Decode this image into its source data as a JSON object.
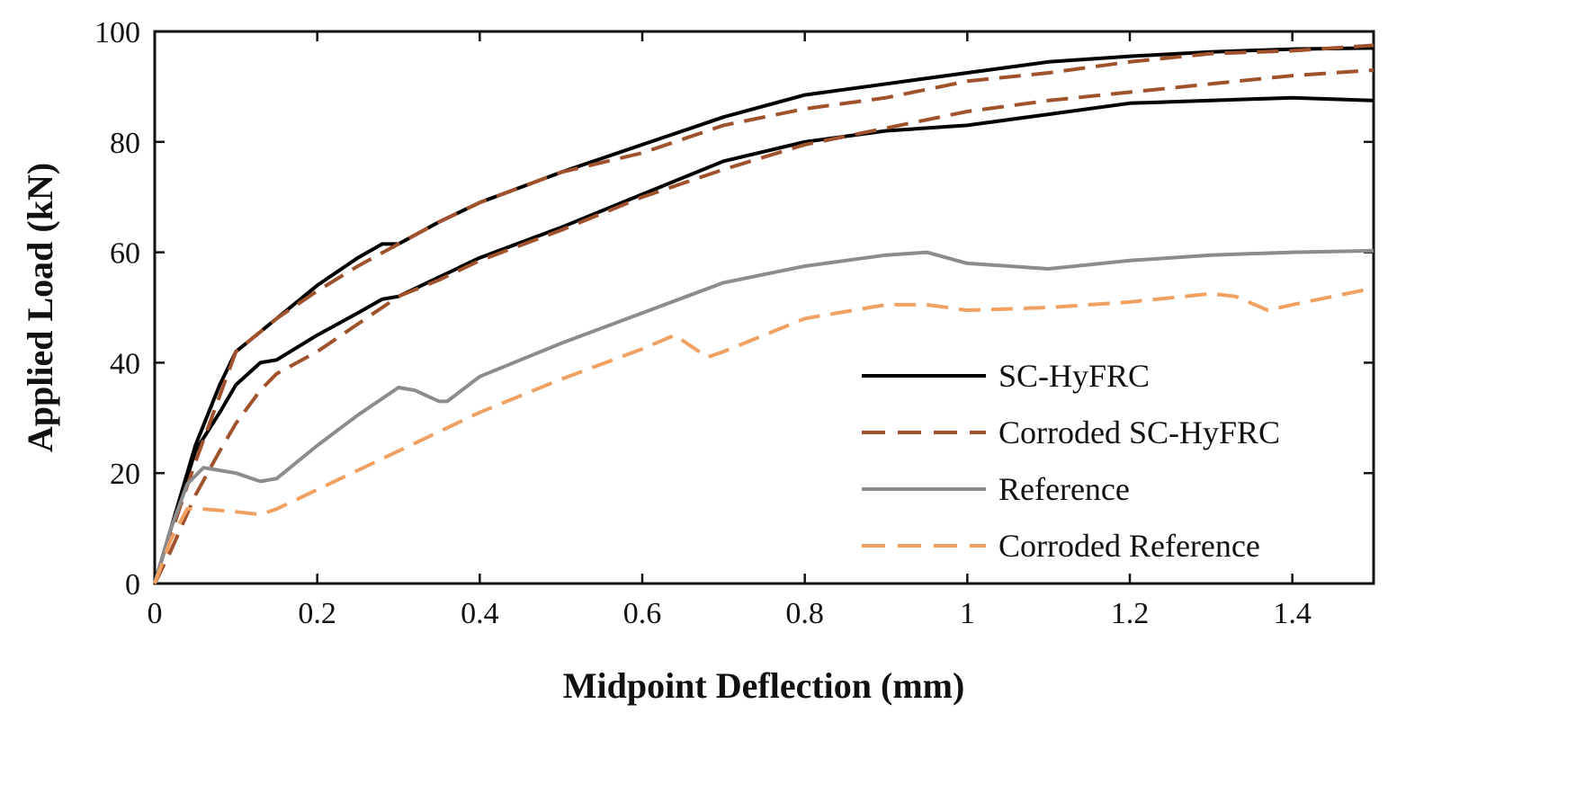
{
  "chart_data": {
    "type": "line",
    "title": "",
    "xlabel": "Midpoint Deflection (mm)",
    "ylabel": "Applied Load (kN)",
    "xlim": [
      0,
      1.5
    ],
    "ylim": [
      0,
      100
    ],
    "xticks": [
      0,
      0.2,
      0.4,
      0.6,
      0.8,
      1,
      1.2,
      1.4
    ],
    "xtick_labels": [
      "0",
      "0.2",
      "0.4",
      "0.6",
      "0.8",
      "1",
      "1.2",
      "1.4"
    ],
    "yticks": [
      0,
      20,
      40,
      60,
      80,
      100
    ],
    "ytick_labels": [
      "0",
      "20",
      "40",
      "60",
      "80",
      "100"
    ],
    "grid": false,
    "legend_position": "bottom-right",
    "legend": [
      {
        "label": "SC-HyFRC",
        "color": "#000000",
        "style": "solid"
      },
      {
        "label": "Corroded SC-HyFRC",
        "color": "#a0522d",
        "style": "dashed"
      },
      {
        "label": "Reference",
        "color": "#8c8c8c",
        "style": "solid"
      },
      {
        "label": "Corroded Reference",
        "color": "#f0a060",
        "style": "dashed"
      }
    ],
    "series": [
      {
        "name": "SC-HyFRC",
        "color": "#000000",
        "style": "solid",
        "x": [
          0,
          0.02,
          0.05,
          0.08,
          0.1,
          0.15,
          0.2,
          0.25,
          0.28,
          0.3,
          0.35,
          0.4,
          0.5,
          0.6,
          0.7,
          0.8,
          0.9,
          1.0,
          1.1,
          1.2,
          1.3,
          1.4,
          1.5
        ],
        "y": [
          0,
          10,
          25,
          36,
          42,
          48,
          54,
          59,
          61.5,
          61.5,
          65.5,
          69,
          74.5,
          79.5,
          84.5,
          88.5,
          90.5,
          92.5,
          94.5,
          95.5,
          96.3,
          96.8,
          97
        ]
      },
      {
        "name": "SC-HyFRC",
        "color": "#000000",
        "style": "solid",
        "x": [
          0,
          0.02,
          0.05,
          0.08,
          0.1,
          0.13,
          0.15,
          0.2,
          0.25,
          0.28,
          0.3,
          0.35,
          0.4,
          0.5,
          0.6,
          0.7,
          0.8,
          0.9,
          1.0,
          1.1,
          1.2,
          1.3,
          1.4,
          1.5
        ],
        "y": [
          0,
          10,
          24,
          31,
          36,
          40,
          40.5,
          45,
          49,
          51.5,
          52,
          55.5,
          59,
          64.5,
          70.5,
          76.5,
          80,
          82,
          83,
          85,
          87,
          87.5,
          88,
          87.5
        ]
      },
      {
        "name": "Corroded SC-HyFRC",
        "color": "#a0522d",
        "style": "dashed",
        "x": [
          0,
          0.02,
          0.05,
          0.08,
          0.1,
          0.15,
          0.2,
          0.25,
          0.3,
          0.35,
          0.4,
          0.5,
          0.6,
          0.7,
          0.8,
          0.9,
          1.0,
          1.1,
          1.2,
          1.3,
          1.4,
          1.5
        ],
        "y": [
          0,
          9,
          22,
          34,
          42,
          48,
          53,
          57.5,
          61.5,
          65.5,
          69,
          74.5,
          78,
          83,
          86,
          88,
          91,
          92.5,
          94.5,
          96,
          96.5,
          97.5
        ]
      },
      {
        "name": "Corroded SC-HyFRC",
        "color": "#a0522d",
        "style": "dashed",
        "x": [
          0,
          0.02,
          0.05,
          0.08,
          0.1,
          0.13,
          0.15,
          0.2,
          0.25,
          0.3,
          0.35,
          0.4,
          0.5,
          0.6,
          0.7,
          0.8,
          0.9,
          1.0,
          1.1,
          1.2,
          1.3,
          1.4,
          1.5
        ],
        "y": [
          0,
          6,
          16,
          24,
          29,
          35,
          38,
          42,
          47,
          52,
          55,
          58.5,
          64,
          70,
          75,
          79.5,
          82.5,
          85.5,
          87.5,
          89,
          90.5,
          92,
          93
        ]
      },
      {
        "name": "Reference",
        "color": "#8c8c8c",
        "style": "solid",
        "x": [
          0,
          0.02,
          0.04,
          0.06,
          0.08,
          0.1,
          0.13,
          0.15,
          0.2,
          0.25,
          0.3,
          0.32,
          0.35,
          0.36,
          0.4,
          0.5,
          0.6,
          0.7,
          0.8,
          0.9,
          0.95,
          1.0,
          1.1,
          1.2,
          1.3,
          1.4,
          1.5
        ],
        "y": [
          0,
          10,
          18,
          21,
          20.5,
          20,
          18.5,
          19,
          25,
          30.5,
          35.5,
          35,
          33,
          33,
          37.5,
          43.5,
          49,
          54.5,
          57.5,
          59.5,
          60,
          58,
          57,
          58.5,
          59.5,
          60,
          60.3
        ]
      },
      {
        "name": "Corroded Reference",
        "color": "#f0a060",
        "style": "dashed",
        "x": [
          0,
          0.02,
          0.04,
          0.06,
          0.1,
          0.13,
          0.15,
          0.2,
          0.3,
          0.4,
          0.5,
          0.6,
          0.64,
          0.68,
          0.7,
          0.8,
          0.9,
          0.95,
          1.0,
          1.1,
          1.2,
          1.3,
          1.33,
          1.37,
          1.4,
          1.5
        ],
        "y": [
          0,
          8,
          13.5,
          13.5,
          13,
          12.5,
          13.5,
          17,
          24,
          31,
          37,
          42.5,
          45,
          41,
          42,
          48,
          50.5,
          50.5,
          49.5,
          50,
          51,
          52.5,
          52,
          49.5,
          50.5,
          53.5
        ]
      }
    ]
  }
}
